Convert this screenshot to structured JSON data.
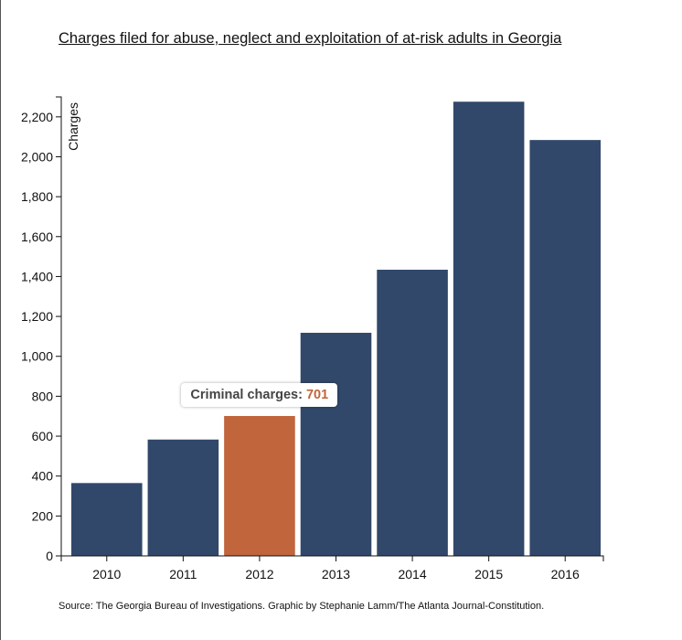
{
  "title": "Charges filed for abuse, neglect and exploitation of at-risk adults in Georgia",
  "source": "Source: The Georgia Bureau of Investigations. Graphic by Stephanie Lamm/The Atlanta Journal-Constitution.",
  "tooltip": {
    "label": "Criminal charges:",
    "value": "701"
  },
  "colors": {
    "bar": "#31486a",
    "highlight": "#c0653c",
    "axis": "#111111"
  },
  "chart_data": {
    "type": "bar",
    "title": "Charges filed for abuse, neglect and exploitation of at-risk adults in Georgia",
    "xlabel": "",
    "ylabel": "Charges",
    "categories": [
      "2010",
      "2011",
      "2012",
      "2013",
      "2014",
      "2015",
      "2016"
    ],
    "values": [
      365,
      583,
      701,
      1118,
      1434,
      2276,
      2084
    ],
    "highlight_index": 2,
    "ylim": [
      0,
      2300
    ],
    "yticks": [
      0,
      200,
      400,
      600,
      800,
      1000,
      1200,
      1400,
      1600,
      1800,
      2000,
      2200
    ],
    "ytick_labels": [
      "0",
      "200",
      "400",
      "600",
      "800",
      "1,000",
      "1,200",
      "1,400",
      "1,600",
      "1,800",
      "2,000",
      "2,200"
    ],
    "grid": false,
    "legend": "none"
  }
}
